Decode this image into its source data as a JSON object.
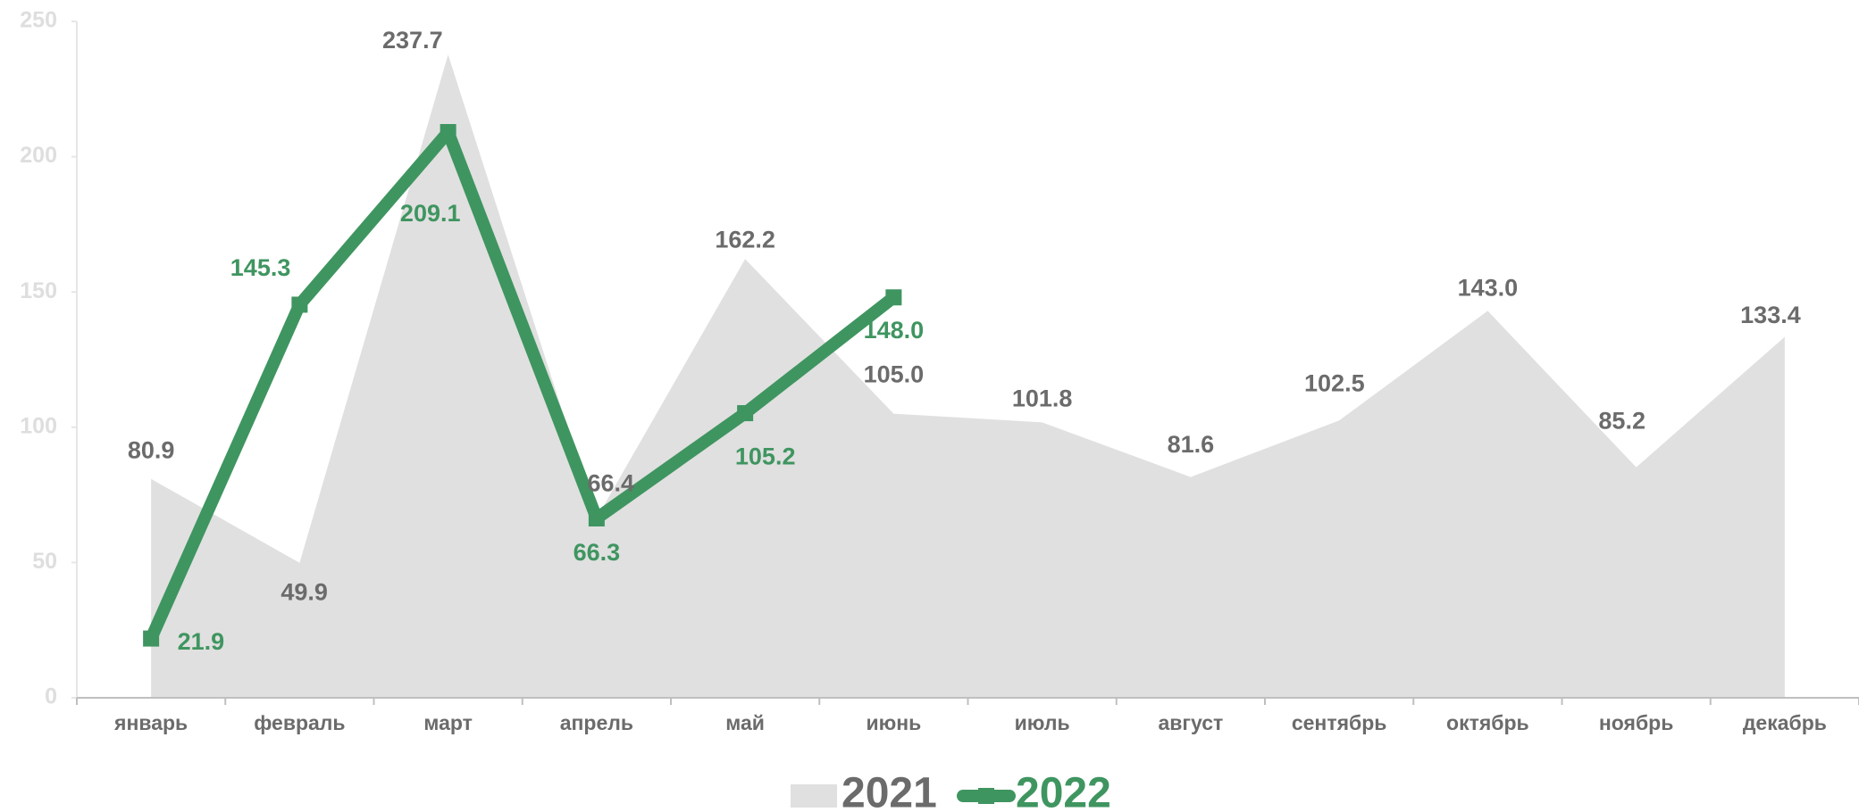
{
  "chart_data": {
    "type": "line",
    "categories": [
      "январь",
      "февраль",
      "март",
      "апрель",
      "май",
      "июнь",
      "июль",
      "август",
      "сентябрь",
      "октябрь",
      "ноябрь",
      "декабрь"
    ],
    "series": [
      {
        "name": "2021",
        "color": "#e0e0e0",
        "label_color": "#6b6b6b",
        "style": "area",
        "values": [
          80.9,
          49.9,
          237.7,
          66.4,
          162.2,
          105.0,
          101.8,
          81.6,
          102.5,
          143.0,
          85.2,
          133.4
        ],
        "value_labels": [
          "80.9",
          "49.9",
          "237.7",
          "66.4",
          "162.2",
          "105.0",
          "101.8",
          "81.6",
          "102.5",
          "143.0",
          "85.2",
          "133.4"
        ]
      },
      {
        "name": "2022",
        "color": "#3f9560",
        "label_color": "#3f9560",
        "style": "line",
        "values": [
          21.9,
          145.3,
          209.1,
          66.3,
          105.2,
          148.0,
          null,
          null,
          null,
          null,
          null,
          null
        ],
        "value_labels": [
          "21.9",
          "145.3",
          "209.1",
          "66.3",
          "105.2",
          "148.0",
          null,
          null,
          null,
          null,
          null,
          null
        ]
      }
    ],
    "ylim": [
      0,
      250
    ],
    "yticks": [
      0,
      50,
      100,
      150,
      200,
      250
    ],
    "legend": "bottom"
  }
}
